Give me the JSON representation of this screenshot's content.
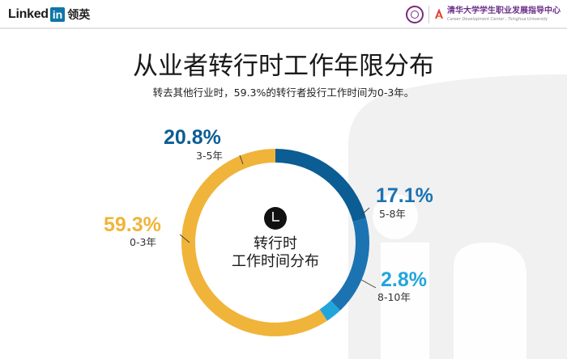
{
  "header": {
    "brand": "Linked",
    "brand_box": "in",
    "brand_cn": "领英",
    "partner_name": "清华大学学生职业发展指导中心",
    "partner_sub": "Career Development Center , Tsinghua University"
  },
  "title": "从业者转行时工作年限分布",
  "subtitle": "转去其他行业时，59.3%的转行者投行工作时间为0-3年。",
  "center_label": [
    "转行时",
    "工作时间分布"
  ],
  "colors": {
    "yellow": "#f0b43a",
    "dark_blue": "#0b5d94",
    "medium_blue": "#1b73b2",
    "light_blue": "#23a5dc"
  },
  "chart_data": {
    "type": "pie",
    "title": "从业者转行时工作年限分布",
    "donut": true,
    "slices": [
      {
        "label": "0-3年",
        "value": 59.3,
        "display": "59.3%",
        "color": "#f0b43a"
      },
      {
        "label": "3-5年",
        "value": 20.8,
        "display": "20.8%",
        "color": "#0b5d94"
      },
      {
        "label": "5-8年",
        "value": 17.1,
        "display": "17.1%",
        "color": "#1b73b2"
      },
      {
        "label": "8-10年",
        "value": 2.8,
        "display": "2.8%",
        "color": "#23a5dc"
      }
    ]
  }
}
